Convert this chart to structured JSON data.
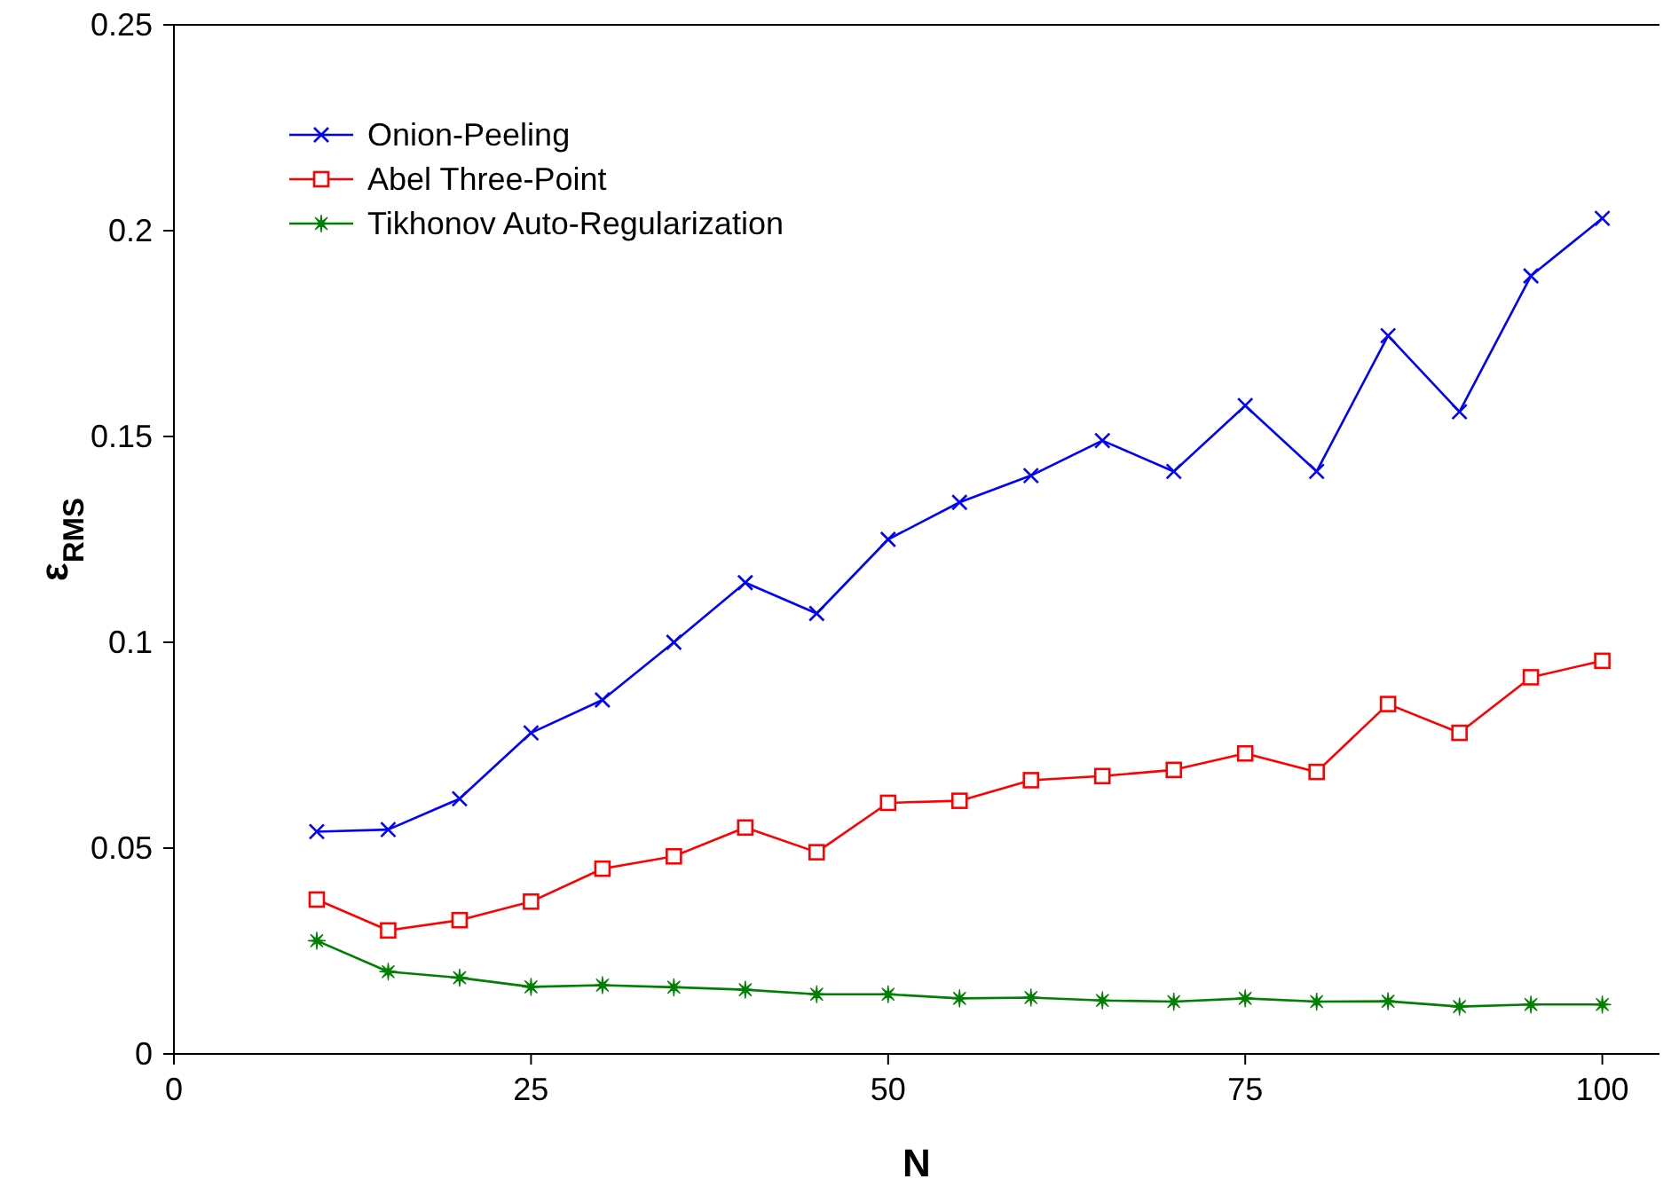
{
  "chart_data": {
    "type": "line",
    "xlabel": "N",
    "ylabel": "ε$_{RMS}$",
    "x": [
      10,
      15,
      20,
      25,
      30,
      35,
      40,
      45,
      50,
      55,
      60,
      65,
      70,
      75,
      80,
      85,
      90,
      95,
      100
    ],
    "xlim": [
      0,
      104
    ],
    "xticks": [
      0,
      25,
      50,
      75,
      100
    ],
    "ylim": [
      0,
      0.25
    ],
    "yticks": [
      0,
      0.05,
      0.1,
      0.15,
      0.2,
      0.25
    ],
    "legend": "top left",
    "grid": false,
    "line_style": "solid",
    "series": [
      {
        "name": "Onion-Peeling",
        "color": "#0000ff",
        "marker": "cross",
        "values": [
          0.054,
          0.0545,
          0.062,
          0.078,
          0.086,
          0.1,
          0.1145,
          0.107,
          0.125,
          0.134,
          0.1405,
          0.149,
          0.1415,
          0.1575,
          0.1415,
          0.1745,
          0.156,
          0.189,
          0.203
        ]
      },
      {
        "name": "Abel Three-Point",
        "color": "#ff0000",
        "marker": "square",
        "values": [
          0.0375,
          0.03,
          0.0325,
          0.037,
          0.045,
          0.048,
          0.055,
          0.049,
          0.061,
          0.0615,
          0.0665,
          0.0675,
          0.069,
          0.073,
          0.0685,
          0.085,
          0.078,
          0.0915,
          0.0955
        ]
      },
      {
        "name": "Tikhonov Auto-Regularization",
        "color": "#008000",
        "marker": "star",
        "values": [
          0.0275,
          0.02,
          0.0185,
          0.0163,
          0.0167,
          0.0162,
          0.0156,
          0.0145,
          0.0145,
          0.0135,
          0.0137,
          0.013,
          0.0127,
          0.0135,
          0.0127,
          0.0128,
          0.0115,
          0.012,
          0.012
        ]
      }
    ]
  }
}
